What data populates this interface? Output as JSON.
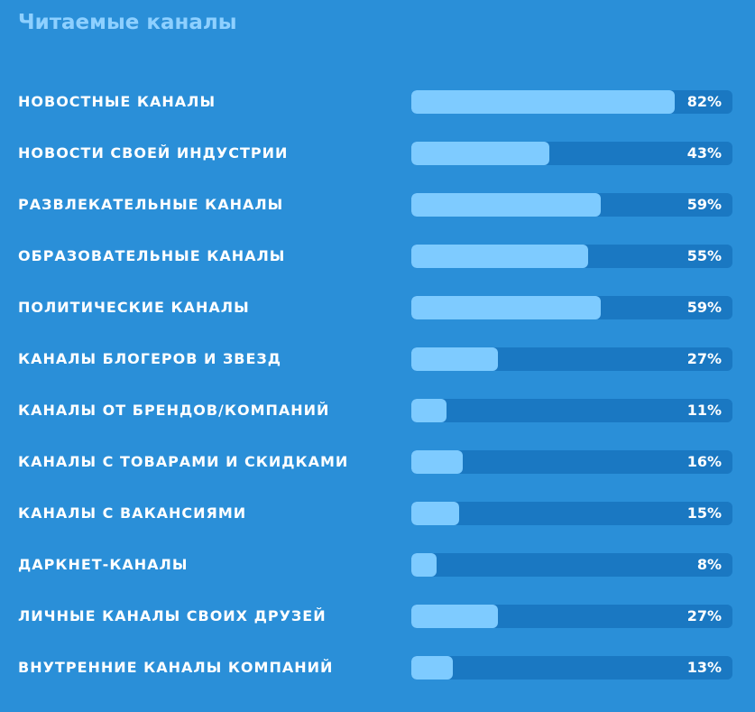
{
  "title": "Читаемые каналы",
  "colors": {
    "background": "#2a8fd8",
    "track": "#1a78c2",
    "fill": "#7ecbff",
    "title": "#8ed0ff",
    "text": "#ffffff"
  },
  "chart_data": {
    "type": "bar",
    "orientation": "horizontal",
    "title": "Читаемые каналы",
    "xlim": [
      0,
      100
    ],
    "grid": false,
    "legend": "none",
    "categories": [
      "НОВОСТНЫЕ КАНАЛЫ",
      "НОВОСТИ СВОЕЙ ИНДУСТРИИ",
      "РАЗВЛЕКАТЕЛЬНЫЕ КАНАЛЫ",
      "ОБРАЗОВАТЕЛЬНЫЕ КАНАЛЫ",
      "ПОЛИТИЧЕСКИЕ КАНАЛЫ",
      "КАНАЛЫ БЛОГЕРОВ И ЗВЕЗД",
      "КАНАЛЫ ОТ БРЕНДОВ/КОМПАНИЙ",
      "КАНАЛЫ С ТОВАРАМИ И СКИДКАМИ",
      "КАНАЛЫ С ВАКАНСИЯМИ",
      "ДАРКНЕТ-КАНАЛЫ",
      "ЛИЧНЫЕ КАНАЛЫ СВОИХ ДРУЗЕЙ",
      "ВНУТРЕННИЕ КАНАЛЫ КОМПАНИЙ"
    ],
    "values": [
      82,
      43,
      59,
      55,
      59,
      27,
      11,
      16,
      15,
      8,
      27,
      13
    ],
    "value_labels": [
      "82%",
      "43%",
      "59%",
      "55%",
      "59%",
      "27%",
      "11%",
      "16%",
      "15%",
      "8%",
      "27%",
      "13%"
    ]
  }
}
